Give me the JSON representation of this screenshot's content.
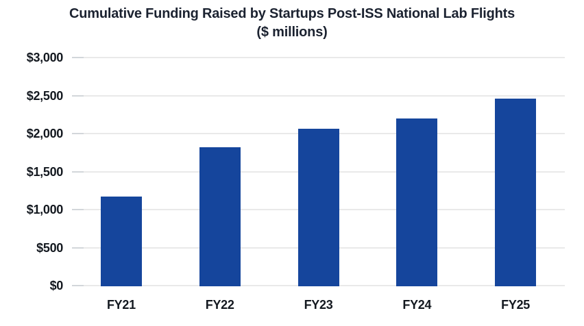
{
  "title": {
    "line1": "Cumulative Funding Raised by Startups Post-ISS National Lab Flights",
    "line2": "($ millions)"
  },
  "chart_data": {
    "type": "bar",
    "title": "Cumulative Funding Raised by Startups Post-ISS National Lab Flights",
    "subtitle": "($ millions)",
    "categories": [
      "FY21",
      "FY22",
      "FY23",
      "FY24",
      "FY25"
    ],
    "values": [
      1170,
      1820,
      2060,
      2200,
      2460
    ],
    "xlabel": "",
    "ylabel": "",
    "ylim": [
      0,
      3000
    ],
    "ytick_interval": 500,
    "ytick_labels": [
      "$0",
      "$500",
      "$1,000",
      "$1,500",
      "$2,000",
      "$2,500",
      "$3,000"
    ],
    "grid": true,
    "legend_position": "none",
    "bar_color": "#15459c"
  },
  "colors": {
    "bar": "#15459c",
    "gridline": "#e9e9e9",
    "tick": "#d2d6da",
    "text": "#1b2230",
    "background": "#ffffff"
  }
}
